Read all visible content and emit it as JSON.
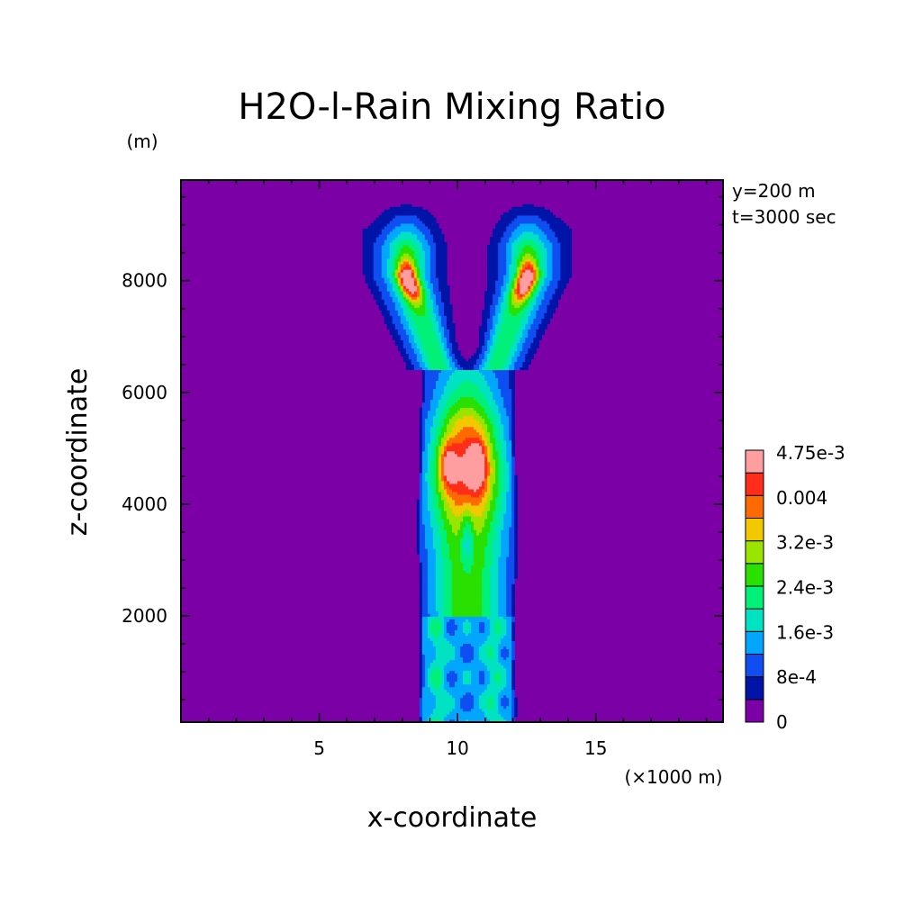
{
  "chart_data": {
    "type": "heatmap",
    "title": "H2O-l-Rain Mixing Ratio",
    "xlabel": "x-coordinate",
    "ylabel": "z-coordinate",
    "x_unit": "(×1000 m)",
    "y_unit": "(m)",
    "annotations": [
      "y=200 m",
      "t=3000 sec"
    ],
    "xlim": [
      0,
      19.6
    ],
    "ylim": [
      100,
      9800
    ],
    "x_ticks": [
      5,
      10,
      15
    ],
    "x_tick_labels": [
      "5",
      "10",
      "15"
    ],
    "y_ticks": [
      2000,
      4000,
      6000,
      8000
    ],
    "y_tick_labels": [
      "2000",
      "4000",
      "6000",
      "8000"
    ],
    "colorbar": {
      "levels": [
        0,
        0.0004,
        0.0008,
        0.0012,
        0.0016,
        0.002,
        0.0024,
        0.0028,
        0.0032,
        0.0036,
        0.004,
        0.0044,
        0.00475
      ],
      "labels": [
        "0",
        "8e-4",
        "1.6e-3",
        "2.4e-3",
        "3.2e-3",
        "0.004",
        "4.75e-3"
      ],
      "colors": [
        "#7b00a6",
        "#0015a8",
        "#0f4ef0",
        "#02a6ff",
        "#00e3c2",
        "#00f078",
        "#29e000",
        "#9be400",
        "#f2c800",
        "#ff6a00",
        "#ff2d1a",
        "#ff9ea0"
      ]
    },
    "features": [
      {
        "shape": "column",
        "x_range": [
          8.6,
          11.8
        ],
        "z_range": [
          100,
          6300
        ]
      },
      {
        "shape": "left_branch",
        "x_range": [
          5.9,
          9.9
        ],
        "z_range": [
          6300,
          9500
        ],
        "peak": [
          8.1,
          8000
        ]
      },
      {
        "shape": "right_branch",
        "x_range": [
          10.3,
          14.3
        ],
        "z_range": [
          6300,
          9500
        ],
        "peak": [
          12.3,
          8000
        ]
      },
      {
        "shape": "core_peaks",
        "points": [
          [
            9.6,
            4700
          ],
          [
            10.7,
            4700
          ]
        ]
      }
    ]
  }
}
